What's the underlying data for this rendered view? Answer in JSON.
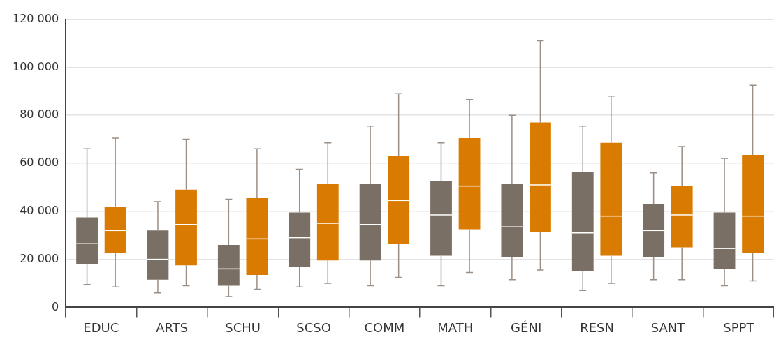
{
  "chart_data": {
    "type": "box",
    "categories": [
      "EDUC",
      "ARTS",
      "SCHU",
      "SCSO",
      "COMM",
      "MATH",
      "GÉNI",
      "RESN",
      "SANT",
      "SPPT"
    ],
    "series": [
      {
        "color": "#7a6f64",
        "boxes": [
          {
            "low": 9500,
            "q1": 18000,
            "median": 26500,
            "q3": 37500,
            "high": 66000
          },
          {
            "low": 6000,
            "q1": 11500,
            "median": 20000,
            "q3": 32000,
            "high": 44000
          },
          {
            "low": 4500,
            "q1": 9000,
            "median": 16000,
            "q3": 26000,
            "high": 45000
          },
          {
            "low": 8500,
            "q1": 17000,
            "median": 29000,
            "q3": 39500,
            "high": 57500
          },
          {
            "low": 9000,
            "q1": 19500,
            "median": 34500,
            "q3": 51500,
            "high": 75500
          },
          {
            "low": 9000,
            "q1": 21500,
            "median": 38500,
            "q3": 52500,
            "high": 68500
          },
          {
            "low": 11500,
            "q1": 21000,
            "median": 33500,
            "q3": 51500,
            "high": 80000
          },
          {
            "low": 7000,
            "q1": 15000,
            "median": 31000,
            "q3": 56500,
            "high": 75500
          },
          {
            "low": 11500,
            "q1": 21000,
            "median": 32000,
            "q3": 43000,
            "high": 56000
          },
          {
            "low": 9000,
            "q1": 16000,
            "median": 24500,
            "q3": 39500,
            "high": 62000
          }
        ]
      },
      {
        "color": "#d97b00",
        "boxes": [
          {
            "low": 8500,
            "q1": 22500,
            "median": 32000,
            "q3": 42000,
            "high": 70500
          },
          {
            "low": 9000,
            "q1": 17500,
            "median": 34500,
            "q3": 49000,
            "high": 70000
          },
          {
            "low": 7500,
            "q1": 13500,
            "median": 28500,
            "q3": 45500,
            "high": 66000
          },
          {
            "low": 10000,
            "q1": 19500,
            "median": 35000,
            "q3": 51500,
            "high": 68500
          },
          {
            "low": 12500,
            "q1": 26500,
            "median": 44500,
            "q3": 63000,
            "high": 89000
          },
          {
            "low": 14500,
            "q1": 32500,
            "median": 50500,
            "q3": 70500,
            "high": 86500
          },
          {
            "low": 15500,
            "q1": 31500,
            "median": 51000,
            "q3": 77000,
            "high": 111000
          },
          {
            "low": 10000,
            "q1": 21500,
            "median": 38000,
            "q3": 68500,
            "high": 88000
          },
          {
            "low": 11500,
            "q1": 25000,
            "median": 38500,
            "q3": 50500,
            "high": 67000
          },
          {
            "low": 11000,
            "q1": 22500,
            "median": 38000,
            "q3": 63500,
            "high": 92500
          }
        ]
      }
    ],
    "ylim": [
      0,
      120000
    ],
    "yticks": [
      0,
      {
        "value": 20000,
        "label": "20 000"
      },
      {
        "value": 40000,
        "label": "40 000"
      },
      {
        "value": 60000,
        "label": "60 000"
      },
      {
        "value": 80000,
        "label": "80 000"
      },
      {
        "value": 100000,
        "label": "100 000"
      },
      {
        "value": 120000,
        "label": "120 000"
      }
    ],
    "grid": "y",
    "legend": false
  }
}
